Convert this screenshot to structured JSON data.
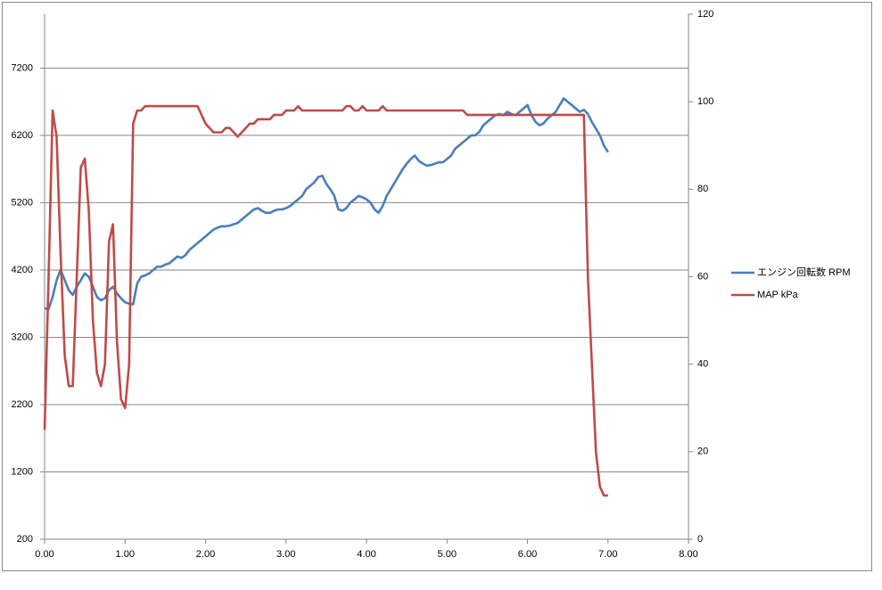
{
  "chart_data": {
    "type": "line",
    "x": [
      0,
      0.05,
      0.1,
      0.15,
      0.2,
      0.25,
      0.3,
      0.35,
      0.4,
      0.45,
      0.5,
      0.55,
      0.6,
      0.65,
      0.7,
      0.75,
      0.8,
      0.85,
      0.9,
      0.95,
      1,
      1.05,
      1.1,
      1.15,
      1.2,
      1.25,
      1.3,
      1.35,
      1.4,
      1.45,
      1.5,
      1.55,
      1.6,
      1.65,
      1.7,
      1.75,
      1.8,
      1.85,
      1.9,
      1.95,
      2,
      2.05,
      2.1,
      2.15,
      2.2,
      2.25,
      2.3,
      2.35,
      2.4,
      2.45,
      2.5,
      2.55,
      2.6,
      2.65,
      2.7,
      2.75,
      2.8,
      2.85,
      2.9,
      2.95,
      3,
      3.05,
      3.1,
      3.15,
      3.2,
      3.25,
      3.3,
      3.35,
      3.4,
      3.45,
      3.5,
      3.55,
      3.6,
      3.65,
      3.7,
      3.75,
      3.8,
      3.85,
      3.9,
      3.95,
      4,
      4.05,
      4.1,
      4.15,
      4.2,
      4.25,
      4.3,
      4.35,
      4.4,
      4.45,
      4.5,
      4.55,
      4.6,
      4.65,
      4.7,
      4.75,
      4.8,
      4.85,
      4.9,
      4.95,
      5,
      5.05,
      5.1,
      5.15,
      5.2,
      5.25,
      5.3,
      5.35,
      5.4,
      5.45,
      5.5,
      5.55,
      5.6,
      5.65,
      5.7,
      5.75,
      5.8,
      5.85,
      5.9,
      5.95,
      6,
      6.05,
      6.1,
      6.15,
      6.2,
      6.25,
      6.3,
      6.35,
      6.4,
      6.45,
      6.5,
      6.55,
      6.6,
      6.65,
      6.7,
      6.75,
      6.8,
      6.85,
      6.9,
      6.95,
      7
    ],
    "series": [
      {
        "name": "エンジン回転数 RPM",
        "color": "#4a7ebb",
        "values": [
          3630,
          3620,
          3800,
          4050,
          4200,
          4050,
          3900,
          3830,
          3950,
          4050,
          4150,
          4100,
          3950,
          3800,
          3750,
          3780,
          3900,
          3950,
          3850,
          3780,
          3720,
          3700,
          3690,
          4000,
          4100,
          4120,
          4150,
          4200,
          4250,
          4250,
          4280,
          4300,
          4350,
          4400,
          4380,
          4420,
          4500,
          4550,
          4600,
          4650,
          4700,
          4750,
          4800,
          4830,
          4850,
          4850,
          4860,
          4880,
          4900,
          4950,
          5000,
          5050,
          5100,
          5120,
          5080,
          5050,
          5050,
          5080,
          5100,
          5100,
          5120,
          5150,
          5200,
          5250,
          5300,
          5400,
          5450,
          5500,
          5580,
          5600,
          5480,
          5400,
          5300,
          5100,
          5080,
          5120,
          5200,
          5250,
          5300,
          5280,
          5250,
          5200,
          5100,
          5050,
          5150,
          5300,
          5400,
          5500,
          5600,
          5700,
          5780,
          5850,
          5900,
          5820,
          5780,
          5750,
          5760,
          5780,
          5800,
          5800,
          5850,
          5900,
          6000,
          6050,
          6100,
          6150,
          6200,
          6200,
          6250,
          6350,
          6400,
          6450,
          6500,
          6520,
          6500,
          6550,
          6520,
          6500,
          6550,
          6600,
          6650,
          6500,
          6400,
          6350,
          6380,
          6450,
          6500,
          6550,
          6650,
          6750,
          6700,
          6650,
          6600,
          6550,
          6580,
          6520,
          6400,
          6300,
          6200,
          6050,
          5950
        ]
      },
      {
        "name": "MAP kPa",
        "color": "#be4b48",
        "axis": "y2",
        "values": [
          25,
          60,
          98,
          92,
          65,
          42,
          35,
          35,
          60,
          85,
          87,
          75,
          50,
          38,
          35,
          40,
          68,
          72,
          45,
          32,
          30,
          40,
          95,
          98,
          98,
          99,
          99,
          99,
          99,
          99,
          99,
          99,
          99,
          99,
          99,
          99,
          99,
          99,
          99,
          97,
          95,
          94,
          93,
          93,
          93,
          94,
          94,
          93,
          92,
          93,
          94,
          95,
          95,
          96,
          96,
          96,
          96,
          97,
          97,
          97,
          98,
          98,
          98,
          99,
          98,
          98,
          98,
          98,
          98,
          98,
          98,
          98,
          98,
          98,
          98,
          99,
          99,
          98,
          98,
          99,
          98,
          98,
          98,
          98,
          99,
          98,
          98,
          98,
          98,
          98,
          98,
          98,
          98,
          98,
          98,
          98,
          98,
          98,
          98,
          98,
          98,
          98,
          98,
          98,
          98,
          97,
          97,
          97,
          97,
          97,
          97,
          97,
          97,
          97,
          97,
          97,
          97,
          97,
          97,
          97,
          97,
          97,
          97,
          97,
          97,
          97,
          97,
          97,
          97,
          97,
          97,
          97,
          97,
          97,
          97,
          60,
          40,
          20,
          12,
          10,
          10
        ]
      }
    ],
    "xlim": [
      0,
      8
    ],
    "xticks": [
      {
        "value": 0,
        "label": "0.00"
      },
      {
        "value": 1,
        "label": "1.00"
      },
      {
        "value": 2,
        "label": "2.00"
      },
      {
        "value": 3,
        "label": "3.00"
      },
      {
        "value": 4,
        "label": "4.00"
      },
      {
        "value": 5,
        "label": "5.00"
      },
      {
        "value": 6,
        "label": "6.00"
      },
      {
        "value": 7,
        "label": "7.00"
      },
      {
        "value": 8,
        "label": "8.00"
      }
    ],
    "ylim": [
      200,
      8000
    ],
    "yticks": [
      200,
      1200,
      2200,
      3200,
      4200,
      5200,
      6200,
      7200
    ],
    "y2lim": [
      0,
      120
    ],
    "y2ticks": [
      0,
      20,
      40,
      60,
      80,
      100,
      120
    ],
    "grid": true,
    "legend": "right"
  }
}
